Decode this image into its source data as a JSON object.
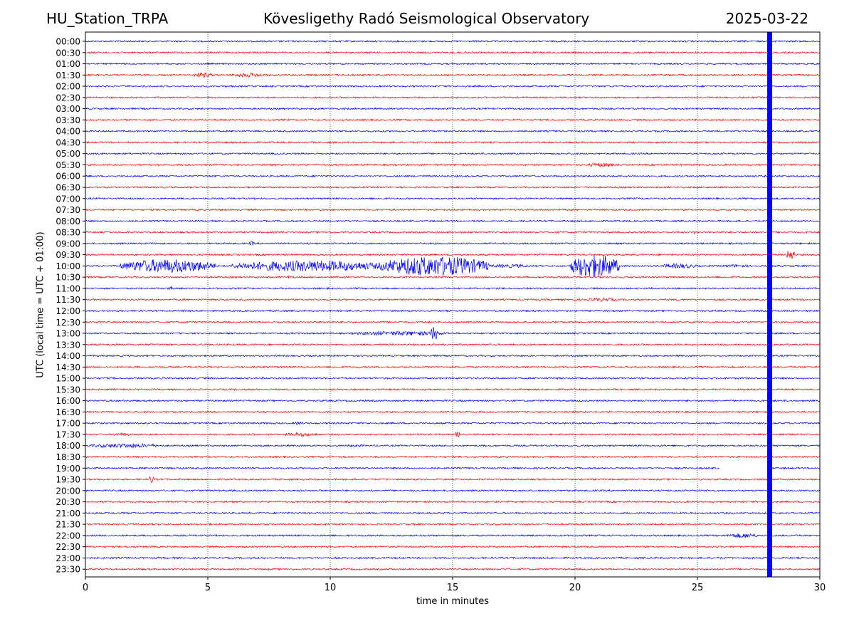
{
  "header": {
    "station": "HU_Station_TRPA",
    "observatory": "Kövesligethy Radó Seismological Observatory",
    "date": "2025-03-22"
  },
  "chart_data": {
    "type": "line",
    "title": "Kövesligethy Radó Seismological Observatory",
    "xlabel": "time in minutes",
    "ylabel": "UTC (local time = UTC + 01:00)",
    "xlim": [
      0,
      30
    ],
    "x_ticks": [
      "0",
      "5",
      "10",
      "15",
      "20",
      "25",
      "30"
    ],
    "y_ticks": [
      "00:00",
      "00:30",
      "01:00",
      "01:30",
      "02:00",
      "02:30",
      "03:00",
      "03:30",
      "04:00",
      "04:30",
      "05:00",
      "05:30",
      "06:00",
      "06:30",
      "07:00",
      "07:30",
      "08:00",
      "08:30",
      "09:00",
      "09:30",
      "10:00",
      "10:30",
      "11:00",
      "11:30",
      "12:00",
      "12:30",
      "13:00",
      "13:30",
      "14:00",
      "14:30",
      "15:00",
      "15:30",
      "16:00",
      "16:30",
      "17:00",
      "17:30",
      "18:00",
      "18:30",
      "19:00",
      "19:30",
      "20:00",
      "20:30",
      "21:00",
      "21:30",
      "22:00",
      "22:30",
      "23:00",
      "23:30"
    ],
    "grid": "vertical dotted",
    "colors": [
      "#0000ff",
      "#ff0000"
    ],
    "gap": {
      "row": "19:00",
      "from_min": 25.9,
      "to_min": 27.9
    },
    "saturated_band": {
      "from_min": 27.85,
      "to_min": 28.05,
      "color": "#0000ff"
    },
    "events": [
      {
        "row": "01:30",
        "start": 4.4,
        "end": 5.2,
        "amp": 0.4
      },
      {
        "row": "01:30",
        "start": 5.9,
        "end": 7.4,
        "amp": 0.35
      },
      {
        "row": "01:30",
        "start": 10.8,
        "end": 11.2,
        "amp": 0.2
      },
      {
        "row": "05:30",
        "start": 20.5,
        "end": 21.6,
        "amp": 0.35
      },
      {
        "row": "08:30",
        "start": 24.8,
        "end": 25.0,
        "amp": 0.3
      },
      {
        "row": "09:00",
        "start": 6.7,
        "end": 6.9,
        "amp": 0.4
      },
      {
        "row": "09:30",
        "start": 28.6,
        "end": 29.0,
        "amp": 0.8
      },
      {
        "row": "10:00",
        "start": 1.4,
        "end": 5.3,
        "amp": 1.1
      },
      {
        "row": "10:00",
        "start": 6.0,
        "end": 12.2,
        "amp": 0.9
      },
      {
        "row": "10:00",
        "start": 12.0,
        "end": 16.5,
        "amp": 1.6
      },
      {
        "row": "10:00",
        "start": 16.5,
        "end": 18.2,
        "amp": 0.3
      },
      {
        "row": "10:00",
        "start": 19.8,
        "end": 21.8,
        "amp": 1.9
      },
      {
        "row": "10:00",
        "start": 23.5,
        "end": 25.0,
        "amp": 0.4
      },
      {
        "row": "10:00",
        "start": 26.0,
        "end": 27.2,
        "amp": 0.25
      },
      {
        "row": "10:30",
        "start": 8.2,
        "end": 8.5,
        "amp": 0.3
      },
      {
        "row": "11:00",
        "start": 3.3,
        "end": 3.6,
        "amp": 0.3
      },
      {
        "row": "11:30",
        "start": 20.4,
        "end": 21.8,
        "amp": 0.3
      },
      {
        "row": "13:00",
        "start": 10.8,
        "end": 15.0,
        "amp": 0.35
      },
      {
        "row": "13:00",
        "start": 14.1,
        "end": 14.4,
        "amp": 1.2
      },
      {
        "row": "15:30",
        "start": 13.7,
        "end": 13.9,
        "amp": 0.3
      },
      {
        "row": "17:00",
        "start": 8.5,
        "end": 8.9,
        "amp": 0.3
      },
      {
        "row": "17:30",
        "start": 1.0,
        "end": 2.0,
        "amp": 0.25
      },
      {
        "row": "17:30",
        "start": 8.0,
        "end": 9.6,
        "amp": 0.3
      },
      {
        "row": "17:30",
        "start": 15.1,
        "end": 15.3,
        "amp": 0.5
      },
      {
        "row": "18:00",
        "start": 0.0,
        "end": 3.2,
        "amp": 0.35
      },
      {
        "row": "18:00",
        "start": 10.5,
        "end": 11.5,
        "amp": 0.2
      },
      {
        "row": "19:30",
        "start": 2.6,
        "end": 2.8,
        "amp": 0.7
      },
      {
        "row": "22:00",
        "start": 26.2,
        "end": 27.5,
        "amp": 0.4
      }
    ]
  }
}
